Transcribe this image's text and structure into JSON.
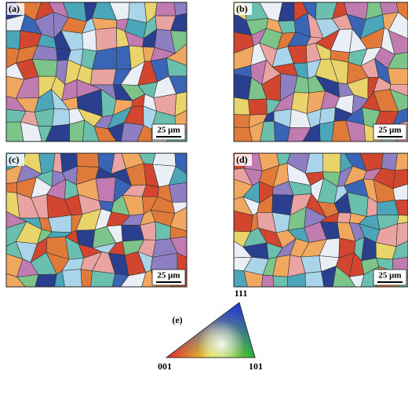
{
  "panels": [
    {
      "label": "(a)",
      "scale_bar": "25 μm"
    },
    {
      "label": "(b)",
      "scale_bar": "25 μm"
    },
    {
      "label": "(c)",
      "scale_bar": "25 μm"
    },
    {
      "label": "(d)",
      "scale_bar": "25 μm"
    }
  ],
  "legend": {
    "label": "(e)",
    "vertex_top": "111",
    "vertex_left": "001",
    "vertex_right": "101"
  }
}
